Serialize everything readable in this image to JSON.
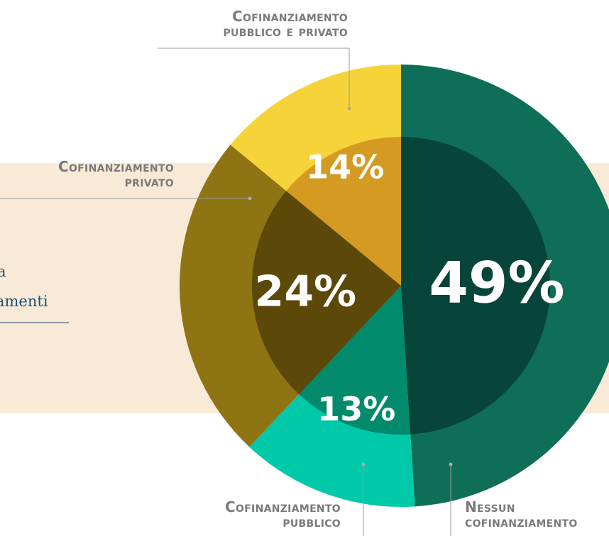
{
  "chart_data": {
    "type": "pie",
    "categories": [
      "Nessun cofinanziamento",
      "Cofinanziamento pubblico",
      "Cofinanziamento privato",
      "Cofinanziamento pubblico e privato"
    ],
    "values": [
      49,
      13,
      24,
      14
    ],
    "value_labels": [
      "49%",
      "13%",
      "24%",
      "14%"
    ],
    "colors": [
      "#0e6e58",
      "#00c9aa",
      "#8f7414",
      "#f7d33a"
    ],
    "inner_colors": [
      "#07443a",
      "#028a6c",
      "#5c4808",
      "#d59a22"
    ],
    "annotations": [
      "a",
      "amenti"
    ]
  }
}
